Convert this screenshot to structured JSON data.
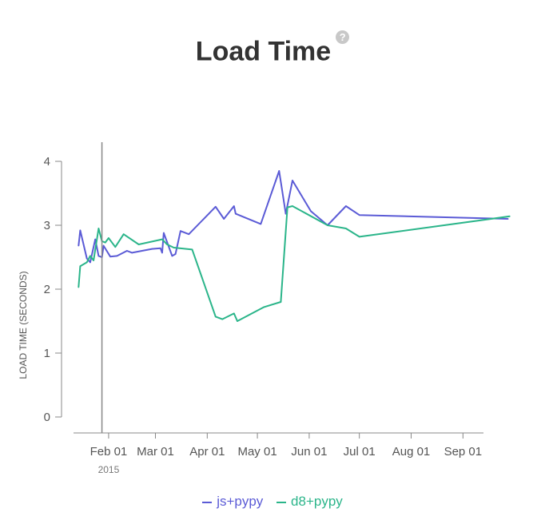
{
  "title": "Load Time",
  "help_icon": "?",
  "chart_data": {
    "type": "line",
    "ylabel": "LOAD TIME (SECONDS)",
    "xlabel": "",
    "ylim": [
      0,
      4
    ],
    "yticks": [
      "0",
      "1",
      "2",
      "3",
      "4"
    ],
    "xlim": [
      "2015-01-11",
      "2015-09-30"
    ],
    "xticks": [
      {
        "date": "2015-02-01",
        "label": "Feb 01"
      },
      {
        "date": "2015-03-01",
        "label": "Mar 01"
      },
      {
        "date": "2015-04-01",
        "label": "Apr 01"
      },
      {
        "date": "2015-05-01",
        "label": "May 01"
      },
      {
        "date": "2015-06-01",
        "label": "Jun 01"
      },
      {
        "date": "2015-07-01",
        "label": "Jul 01"
      },
      {
        "date": "2015-08-01",
        "label": "Aug 01"
      },
      {
        "date": "2015-09-01",
        "label": "Sep 01"
      }
    ],
    "year_label": "2015",
    "year_label_date": "2015-02-01",
    "cursor_date": "2015-01-28",
    "grid": false,
    "legend_position": "bottom",
    "series": [
      {
        "name": "js+pypy",
        "color": "#5b5bd6",
        "points": [
          [
            "2015-01-14",
            2.68
          ],
          [
            "2015-01-15",
            2.92
          ],
          [
            "2015-01-19",
            2.48
          ],
          [
            "2015-01-21",
            2.42
          ],
          [
            "2015-01-24",
            2.78
          ],
          [
            "2015-01-26",
            2.52
          ],
          [
            "2015-01-28",
            2.5
          ],
          [
            "2015-01-29",
            2.68
          ],
          [
            "2015-02-02",
            2.51
          ],
          [
            "2015-02-06",
            2.52
          ],
          [
            "2015-02-12",
            2.6
          ],
          [
            "2015-02-15",
            2.57
          ],
          [
            "2015-02-27",
            2.63
          ],
          [
            "2015-03-04",
            2.64
          ],
          [
            "2015-03-05",
            2.57
          ],
          [
            "2015-03-06",
            2.88
          ],
          [
            "2015-03-11",
            2.52
          ],
          [
            "2015-03-13",
            2.55
          ],
          [
            "2015-03-16",
            2.91
          ],
          [
            "2015-03-21",
            2.86
          ],
          [
            "2015-04-06",
            3.29
          ],
          [
            "2015-04-11",
            3.1
          ],
          [
            "2015-04-17",
            3.3
          ],
          [
            "2015-04-18",
            3.18
          ],
          [
            "2015-05-03",
            3.02
          ],
          [
            "2015-05-14",
            3.85
          ],
          [
            "2015-05-18",
            3.18
          ],
          [
            "2015-05-22",
            3.7
          ],
          [
            "2015-06-02",
            3.22
          ],
          [
            "2015-06-12",
            3.0
          ],
          [
            "2015-06-23",
            3.3
          ],
          [
            "2015-07-01",
            3.16
          ],
          [
            "2015-09-28",
            3.1
          ]
        ]
      },
      {
        "name": "d8+pypy",
        "color": "#2bb58a",
        "points": [
          [
            "2015-01-14",
            2.03
          ],
          [
            "2015-01-15",
            2.36
          ],
          [
            "2015-01-19",
            2.42
          ],
          [
            "2015-01-21",
            2.52
          ],
          [
            "2015-01-23",
            2.45
          ],
          [
            "2015-01-26",
            2.95
          ],
          [
            "2015-01-28",
            2.75
          ],
          [
            "2015-01-30",
            2.73
          ],
          [
            "2015-02-01",
            2.8
          ],
          [
            "2015-02-05",
            2.66
          ],
          [
            "2015-02-10",
            2.86
          ],
          [
            "2015-02-19",
            2.7
          ],
          [
            "2015-03-05",
            2.78
          ],
          [
            "2015-03-08",
            2.7
          ],
          [
            "2015-03-12",
            2.65
          ],
          [
            "2015-03-23",
            2.62
          ],
          [
            "2015-04-06",
            1.57
          ],
          [
            "2015-04-10",
            1.53
          ],
          [
            "2015-04-17",
            1.62
          ],
          [
            "2015-04-19",
            1.5
          ],
          [
            "2015-05-05",
            1.72
          ],
          [
            "2015-05-15",
            1.8
          ],
          [
            "2015-05-19",
            3.28
          ],
          [
            "2015-05-22",
            3.3
          ],
          [
            "2015-06-12",
            3.0
          ],
          [
            "2015-06-23",
            2.95
          ],
          [
            "2015-07-01",
            2.82
          ],
          [
            "2015-09-29",
            3.14
          ]
        ]
      }
    ]
  },
  "legend": [
    {
      "label": "js+pypy",
      "color": "#5b5bd6"
    },
    {
      "label": "d8+pypy",
      "color": "#2bb58a"
    }
  ]
}
